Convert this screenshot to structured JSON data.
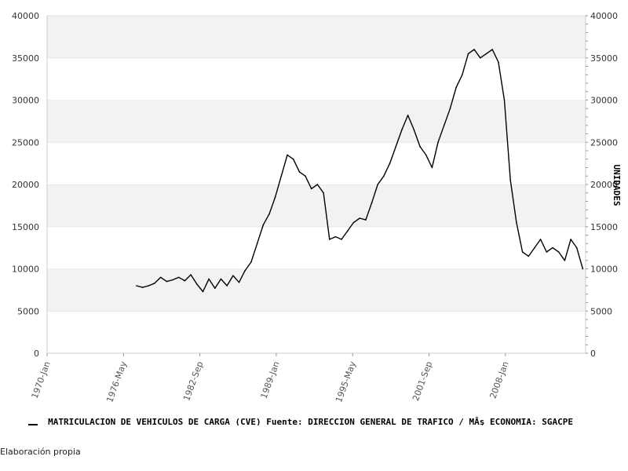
{
  "chart_data": {
    "type": "line",
    "title": "",
    "xlabel": "",
    "ylabel": "UNIDADES",
    "x_tick_labels": [
      "1970-Jan",
      "1976-May",
      "1982-Sep",
      "1989-Jan",
      "1995-May",
      "2001-Sep",
      "2008-Jan"
    ],
    "y_ticks": [
      0,
      5000,
      10000,
      15000,
      20000,
      25000,
      30000,
      35000,
      40000
    ],
    "ylim": [
      0,
      40000
    ],
    "grid": "horizontal bands",
    "legend_position": "bottom",
    "series": [
      {
        "name": "MATRICULACION DE VEHICULOS DE CARGA (CVE)  Fuente: DIRECCION GENERAL DE TRAFICO / MÂş ECONOMIA: SGACPE",
        "color": "#000000",
        "x": [
          "1977-06",
          "1977-12",
          "1978-06",
          "1978-12",
          "1979-06",
          "1979-12",
          "1980-06",
          "1980-12",
          "1981-06",
          "1981-12",
          "1982-06",
          "1982-12",
          "1983-06",
          "1983-12",
          "1984-06",
          "1984-12",
          "1985-06",
          "1985-12",
          "1986-06",
          "1986-12",
          "1987-06",
          "1987-12",
          "1988-06",
          "1988-12",
          "1989-06",
          "1989-12",
          "1990-06",
          "1990-12",
          "1991-06",
          "1991-12",
          "1992-06",
          "1992-12",
          "1993-06",
          "1993-12",
          "1994-06",
          "1994-12",
          "1995-06",
          "1995-12",
          "1996-06",
          "1996-12",
          "1997-06",
          "1997-12",
          "1998-06",
          "1998-12",
          "1999-06",
          "1999-12",
          "2000-06",
          "2000-12",
          "2001-06",
          "2001-12",
          "2002-06",
          "2002-12",
          "2003-06",
          "2003-12",
          "2004-06",
          "2004-12",
          "2005-06",
          "2005-12",
          "2006-06",
          "2006-12",
          "2007-06",
          "2007-12",
          "2008-06",
          "2008-12",
          "2009-06",
          "2009-12",
          "2010-06",
          "2010-12",
          "2011-06",
          "2011-12",
          "2012-06",
          "2012-12",
          "2013-06",
          "2013-12",
          "2014-06"
        ],
        "values": [
          8000,
          7800,
          8000,
          8300,
          9000,
          8500,
          8700,
          9000,
          8600,
          9300,
          8200,
          7300,
          8800,
          7700,
          8800,
          8000,
          9200,
          8400,
          9800,
          10800,
          13000,
          15200,
          16500,
          18500,
          21000,
          23500,
          23000,
          21500,
          21000,
          19500,
          20000,
          19000,
          13500,
          13800,
          13500,
          14500,
          15500,
          16000,
          15800,
          17800,
          20000,
          21000,
          22500,
          24500,
          26500,
          28200,
          26500,
          24500,
          23500,
          22000,
          25000,
          27000,
          29000,
          31500,
          33000,
          35500,
          36000,
          35000,
          35500,
          36000,
          34500,
          30000,
          20500,
          15500,
          12000,
          11500,
          12500,
          13500,
          12000,
          12500,
          12000,
          11000,
          13500,
          12500,
          10000
        ]
      }
    ]
  },
  "footer": {
    "note": "Elaboración propia"
  }
}
